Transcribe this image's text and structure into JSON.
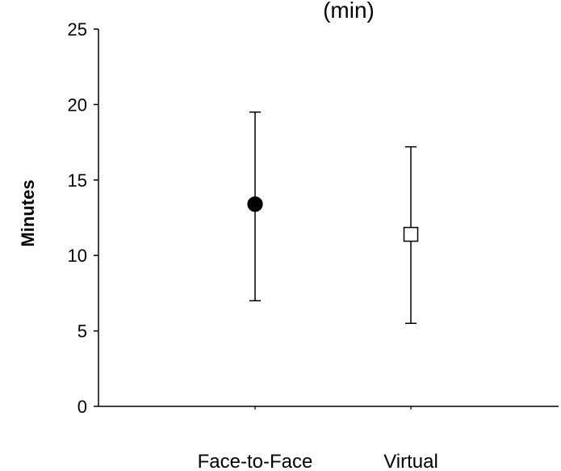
{
  "chart_data": {
    "type": "scatter",
    "title_fragment": "(min)",
    "ylabel": "Minutes",
    "xlabel": "",
    "categories": [
      "Face-to-Face",
      "Virtual"
    ],
    "ylim": [
      0,
      25
    ],
    "yticks": [
      "0",
      "5",
      "10",
      "15",
      "20",
      "25"
    ],
    "grid": false,
    "series": [
      {
        "values": [
          13.4,
          11.4
        ],
        "error_low": [
          7.0,
          5.5
        ],
        "error_high": [
          19.5,
          17.2
        ],
        "markers": [
          "filled-circle",
          "open-square"
        ]
      }
    ],
    "colors": {
      "axis": "#000000",
      "marker_fill": "#000000",
      "marker_open_fill": "#ffffff"
    }
  }
}
